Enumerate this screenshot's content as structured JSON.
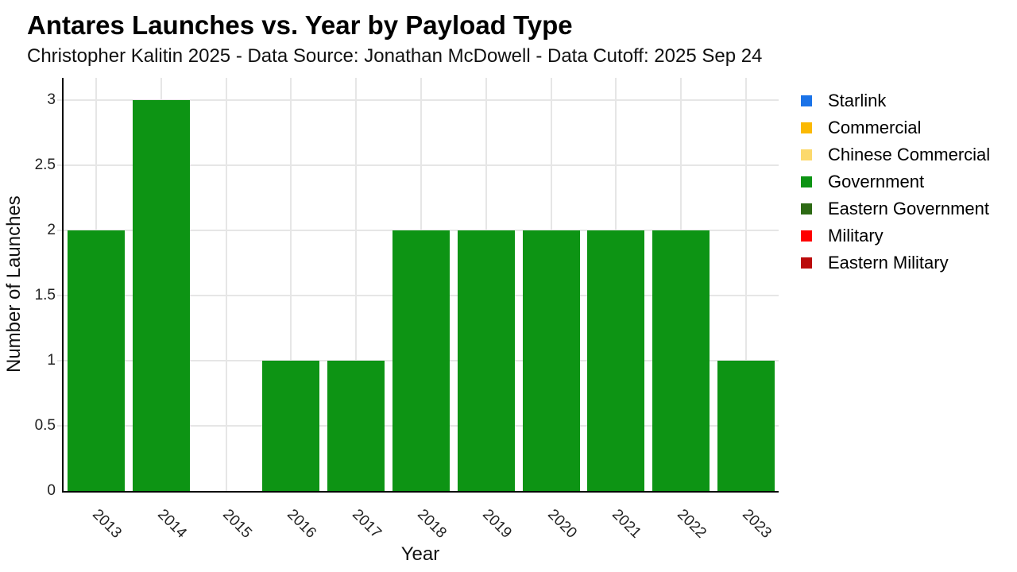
{
  "header": {
    "title": "Antares Launches vs. Year by Payload Type",
    "subtitle": "Christopher Kalitin 2025 - Data Source: Jonathan McDowell - Data Cutoff: 2025 Sep 24"
  },
  "chart_data": {
    "type": "bar",
    "title": "Antares Launches vs. Year by Payload Type",
    "xlabel": "Year",
    "ylabel": "Number of Launches",
    "categories": [
      "2013",
      "2014",
      "2015",
      "2016",
      "2017",
      "2018",
      "2019",
      "2020",
      "2021",
      "2022",
      "2023"
    ],
    "series": [
      {
        "name": "Government",
        "color": "#0D9414",
        "values": [
          2,
          3,
          0,
          1,
          1,
          2,
          2,
          2,
          2,
          2,
          1
        ]
      }
    ],
    "ylim": [
      0,
      3.17
    ],
    "yticks": [
      0,
      0.5,
      1,
      1.5,
      2,
      2.5,
      3
    ],
    "ytick_labels": [
      "0",
      "0.5",
      "1",
      "1.5",
      "2",
      "2.5",
      "3"
    ],
    "grid": true,
    "gridcolor": "#E6E6E6",
    "axis_color": "#000000",
    "background": "#FFFFFF",
    "legend_position": "right",
    "legend": [
      {
        "label": "Starlink",
        "color": "#1B73E8"
      },
      {
        "label": "Commercial",
        "color": "#FBB903"
      },
      {
        "label": "Chinese Commercial",
        "color": "#FCD96C"
      },
      {
        "label": "Government",
        "color": "#0D9414"
      },
      {
        "label": "Eastern Government",
        "color": "#2D6A14"
      },
      {
        "label": "Military",
        "color": "#FE0000"
      },
      {
        "label": "Eastern Military",
        "color": "#BB0A0A"
      }
    ]
  }
}
